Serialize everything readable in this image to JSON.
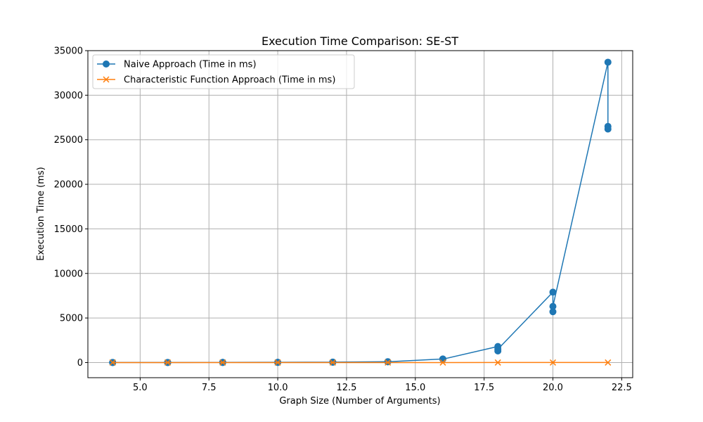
{
  "chart_data": {
    "type": "line",
    "title": "Execution Time Comparison: SE-ST",
    "xlabel": "Graph Size (Number of Arguments)",
    "ylabel": "Execution Time (ms)",
    "xlim": [
      3.1,
      22.9
    ],
    "ylim": [
      -1700,
      35000
    ],
    "xticks": [
      5.0,
      7.5,
      10.0,
      12.5,
      15.0,
      17.5,
      20.0,
      22.5
    ],
    "xtick_labels": [
      "5.0",
      "7.5",
      "10.0",
      "12.5",
      "15.0",
      "17.5",
      "20.0",
      "22.5"
    ],
    "yticks": [
      0,
      5000,
      10000,
      15000,
      20000,
      25000,
      30000,
      35000
    ],
    "ytick_labels": [
      "0",
      "5000",
      "10000",
      "15000",
      "20000",
      "25000",
      "30000",
      "35000"
    ],
    "grid": true,
    "legend_position": "top-left",
    "series": [
      {
        "name": "Naive Approach (Time in ms)",
        "color": "#1f77b4",
        "marker": "circle",
        "x": [
          4,
          4,
          4,
          6,
          6,
          6,
          8,
          8,
          8,
          10,
          10,
          10,
          12,
          12,
          12,
          14,
          14,
          16,
          16,
          18,
          18,
          18,
          20,
          20,
          20,
          22,
          22,
          22
        ],
        "y": [
          5,
          3,
          4,
          10,
          8,
          9,
          15,
          12,
          14,
          25,
          20,
          22,
          50,
          40,
          45,
          100,
          90,
          400,
          380,
          1800,
          1300,
          1500,
          7900,
          5700,
          6300,
          33700,
          26500,
          26200
        ]
      },
      {
        "name": "Characteristic Function Approach (Time in ms)",
        "color": "#ff7f0e",
        "marker": "x",
        "x": [
          4,
          6,
          8,
          10,
          12,
          14,
          16,
          18,
          20,
          22
        ],
        "y": [
          1,
          1,
          1,
          1,
          1,
          2,
          2,
          3,
          3,
          4
        ]
      }
    ]
  }
}
